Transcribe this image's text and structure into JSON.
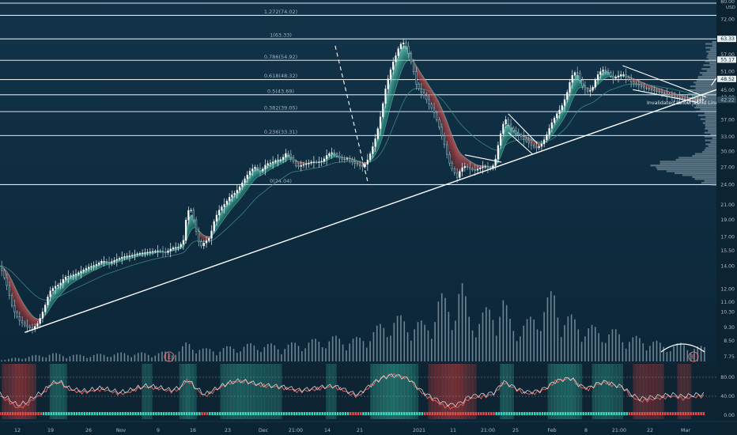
{
  "chart_data": {
    "type": "candlestick",
    "currency": "USD",
    "x_labels": [
      "12",
      "19",
      "26",
      "Nov",
      "9",
      "16",
      "23",
      "Dec",
      "21:00",
      "14",
      "21",
      "2021",
      "11",
      "21:00",
      "25",
      "Feb",
      "8",
      "21:00",
      "22",
      "Mar"
    ],
    "y_ticks": [
      "80.00",
      "72.00",
      "63.33",
      "57.00",
      "55.17",
      "51.00",
      "48.52",
      "45.00",
      "43.00",
      "42.22",
      "37.00",
      "33.00",
      "30.00",
      "27.00",
      "24.00",
      "21.00",
      "19.00",
      "17.00",
      "15.50",
      "14.00",
      "12.00",
      "11.00",
      "10.30",
      "9.30",
      "8.50",
      "7.75"
    ],
    "osc_ticks": [
      "80.00",
      "40.00",
      "0.00"
    ],
    "fib_levels": [
      {
        "label": "1.272(74.02)",
        "value": 74.02
      },
      {
        "label": "1(63.33)",
        "value": 63.33
      },
      {
        "label": "0.786(54.92)",
        "value": 54.92
      },
      {
        "label": "0.618(48.32)",
        "value": 48.32
      },
      {
        "label": "0.5(43.69)",
        "value": 43.69
      },
      {
        "label": "0.382(39.05)",
        "value": 39.05
      },
      {
        "label": "0.236(33.31)",
        "value": 33.31
      },
      {
        "label": "0(24.04)",
        "value": 24.04
      }
    ],
    "price_path": [
      [
        0,
        14.0
      ],
      [
        8,
        12.3
      ],
      [
        15,
        10.5
      ],
      [
        22,
        9.8
      ],
      [
        30,
        9.4
      ],
      [
        38,
        9.2
      ],
      [
        45,
        9.6
      ],
      [
        52,
        10.6
      ],
      [
        58,
        11.8
      ],
      [
        64,
        12.2
      ],
      [
        70,
        12.4
      ],
      [
        76,
        13.0
      ],
      [
        82,
        13.1
      ],
      [
        90,
        13.3
      ],
      [
        97,
        13.6
      ],
      [
        104,
        13.9
      ],
      [
        112,
        14.1
      ],
      [
        120,
        14.5
      ],
      [
        128,
        14.3
      ],
      [
        136,
        14.6
      ],
      [
        145,
        14.9
      ],
      [
        153,
        15.0
      ],
      [
        162,
        15.2
      ],
      [
        170,
        15.3
      ],
      [
        178,
        15.4
      ],
      [
        186,
        15.5
      ],
      [
        194,
        15.3
      ],
      [
        202,
        15.8
      ],
      [
        210,
        15.9
      ],
      [
        215,
        16.6
      ],
      [
        219,
        19.8
      ],
      [
        223,
        20.7
      ],
      [
        228,
        18.6
      ],
      [
        232,
        16.6
      ],
      [
        236,
        16.0
      ],
      [
        240,
        16.4
      ],
      [
        246,
        16.9
      ],
      [
        252,
        19.2
      ],
      [
        258,
        20.5
      ],
      [
        264,
        21.2
      ],
      [
        270,
        22.3
      ],
      [
        276,
        22.8
      ],
      [
        282,
        23.9
      ],
      [
        288,
        25.2
      ],
      [
        294,
        26.5
      ],
      [
        300,
        27.1
      ],
      [
        306,
        26.2
      ],
      [
        312,
        27.6
      ],
      [
        318,
        27.8
      ],
      [
        324,
        28.3
      ],
      [
        330,
        28.4
      ],
      [
        336,
        29.8
      ],
      [
        342,
        28.6
      ],
      [
        348,
        27.0
      ],
      [
        354,
        27.4
      ],
      [
        360,
        27.6
      ],
      [
        366,
        28.0
      ],
      [
        372,
        27.9
      ],
      [
        378,
        28.1
      ],
      [
        384,
        29.4
      ],
      [
        390,
        29.8
      ],
      [
        396,
        28.9
      ],
      [
        402,
        28.4
      ],
      [
        408,
        28.6
      ],
      [
        414,
        27.8
      ],
      [
        420,
        27.4
      ],
      [
        426,
        27.0
      ],
      [
        432,
        28.6
      ],
      [
        436,
        30.4
      ],
      [
        440,
        32.6
      ],
      [
        444,
        35.6
      ],
      [
        448,
        39.8
      ],
      [
        452,
        45.4
      ],
      [
        456,
        49.6
      ],
      [
        460,
        53.6
      ],
      [
        464,
        56.6
      ],
      [
        468,
        60.2
      ],
      [
        472,
        62.2
      ],
      [
        476,
        60.2
      ],
      [
        480,
        56.6
      ],
      [
        484,
        52.2
      ],
      [
        488,
        46.9
      ],
      [
        492,
        45.0
      ],
      [
        496,
        43.8
      ],
      [
        500,
        42.3
      ],
      [
        504,
        40.6
      ],
      [
        508,
        39.4
      ],
      [
        512,
        37.0
      ],
      [
        516,
        34.6
      ],
      [
        520,
        32.0
      ],
      [
        524,
        29.4
      ],
      [
        528,
        27.2
      ],
      [
        532,
        26.2
      ],
      [
        536,
        25.2
      ],
      [
        540,
        26.6
      ],
      [
        544,
        27.2
      ],
      [
        550,
        26.8
      ],
      [
        556,
        26.4
      ],
      [
        562,
        26.8
      ],
      [
        568,
        27.2
      ],
      [
        574,
        26.6
      ],
      [
        580,
        27.6
      ],
      [
        586,
        33.0
      ],
      [
        592,
        37.4
      ],
      [
        598,
        35.2
      ],
      [
        604,
        34.0
      ],
      [
        610,
        33.2
      ],
      [
        616,
        32.3
      ],
      [
        622,
        31.4
      ],
      [
        628,
        30.6
      ],
      [
        634,
        31.2
      ],
      [
        640,
        33.0
      ],
      [
        646,
        35.9
      ],
      [
        652,
        38.2
      ],
      [
        658,
        40.1
      ],
      [
        664,
        43.4
      ],
      [
        670,
        49.4
      ],
      [
        676,
        51.2
      ],
      [
        682,
        46.6
      ],
      [
        688,
        44.6
      ],
      [
        694,
        45.2
      ],
      [
        700,
        49.6
      ],
      [
        706,
        51.6
      ],
      [
        712,
        51.1
      ],
      [
        718,
        48.6
      ],
      [
        724,
        49.4
      ],
      [
        730,
        50.2
      ],
      [
        736,
        48.6
      ],
      [
        742,
        47.1
      ],
      [
        748,
        46.6
      ],
      [
        754,
        45.8
      ],
      [
        760,
        45.4
      ],
      [
        766,
        44.9
      ],
      [
        772,
        44.5
      ],
      [
        778,
        44.0
      ],
      [
        784,
        43.6
      ],
      [
        790,
        43.0
      ],
      [
        796,
        42.8
      ],
      [
        802,
        42.4
      ],
      [
        808,
        42.1
      ],
      [
        814,
        41.8
      ],
      [
        820,
        42.2
      ],
      [
        826,
        42.3
      ]
    ],
    "volume_path": [
      [
        0,
        2
      ],
      [
        30,
        6
      ],
      [
        60,
        10
      ],
      [
        90,
        8
      ],
      [
        120,
        9
      ],
      [
        150,
        11
      ],
      [
        180,
        10
      ],
      [
        210,
        14
      ],
      [
        220,
        24
      ],
      [
        240,
        15
      ],
      [
        270,
        18
      ],
      [
        300,
        22
      ],
      [
        330,
        20
      ],
      [
        360,
        25
      ],
      [
        390,
        30
      ],
      [
        420,
        28
      ],
      [
        440,
        40
      ],
      [
        460,
        55
      ],
      [
        480,
        52
      ],
      [
        500,
        45
      ],
      [
        515,
        80
      ],
      [
        520,
        78
      ],
      [
        530,
        68
      ],
      [
        540,
        100
      ],
      [
        550,
        60
      ],
      [
        560,
        55
      ],
      [
        580,
        70
      ],
      [
        590,
        78
      ],
      [
        600,
        45
      ],
      [
        620,
        50
      ],
      [
        640,
        75
      ],
      [
        650,
        85
      ],
      [
        660,
        60
      ],
      [
        680,
        48
      ],
      [
        700,
        40
      ],
      [
        720,
        38
      ],
      [
        740,
        30
      ],
      [
        760,
        28
      ],
      [
        780,
        20
      ],
      [
        800,
        22
      ],
      [
        820,
        18
      ]
    ],
    "osc_path": [
      [
        0,
        40
      ],
      [
        10,
        30
      ],
      [
        20,
        15
      ],
      [
        30,
        20
      ],
      [
        40,
        35
      ],
      [
        50,
        45
      ],
      [
        60,
        65
      ],
      [
        70,
        70
      ],
      [
        80,
        55
      ],
      [
        90,
        50
      ],
      [
        100,
        48
      ],
      [
        110,
        52
      ],
      [
        120,
        55
      ],
      [
        130,
        50
      ],
      [
        140,
        45
      ],
      [
        150,
        48
      ],
      [
        160,
        55
      ],
      [
        170,
        60
      ],
      [
        180,
        58
      ],
      [
        190,
        55
      ],
      [
        200,
        50
      ],
      [
        210,
        55
      ],
      [
        220,
        75
      ],
      [
        230,
        55
      ],
      [
        240,
        40
      ],
      [
        250,
        50
      ],
      [
        260,
        60
      ],
      [
        270,
        68
      ],
      [
        280,
        72
      ],
      [
        290,
        70
      ],
      [
        300,
        65
      ],
      [
        310,
        62
      ],
      [
        320,
        60
      ],
      [
        330,
        58
      ],
      [
        340,
        55
      ],
      [
        350,
        50
      ],
      [
        360,
        52
      ],
      [
        370,
        55
      ],
      [
        380,
        58
      ],
      [
        390,
        60
      ],
      [
        400,
        55
      ],
      [
        410,
        45
      ],
      [
        420,
        40
      ],
      [
        430,
        55
      ],
      [
        440,
        70
      ],
      [
        450,
        80
      ],
      [
        460,
        85
      ],
      [
        470,
        82
      ],
      [
        480,
        75
      ],
      [
        490,
        55
      ],
      [
        500,
        40
      ],
      [
        510,
        30
      ],
      [
        520,
        20
      ],
      [
        530,
        15
      ],
      [
        540,
        20
      ],
      [
        550,
        35
      ],
      [
        560,
        38
      ],
      [
        570,
        40
      ],
      [
        580,
        45
      ],
      [
        590,
        70
      ],
      [
        600,
        60
      ],
      [
        610,
        50
      ],
      [
        620,
        45
      ],
      [
        630,
        48
      ],
      [
        640,
        55
      ],
      [
        650,
        70
      ],
      [
        660,
        75
      ],
      [
        670,
        78
      ],
      [
        680,
        60
      ],
      [
        690,
        55
      ],
      [
        700,
        65
      ],
      [
        710,
        70
      ],
      [
        720,
        62
      ],
      [
        730,
        58
      ],
      [
        740,
        40
      ],
      [
        750,
        30
      ],
      [
        760,
        32
      ],
      [
        770,
        35
      ],
      [
        780,
        38
      ],
      [
        790,
        40
      ],
      [
        800,
        35
      ],
      [
        810,
        38
      ],
      [
        820,
        40
      ]
    ],
    "annotations": [
      "Invalidated Below Trend Line"
    ],
    "event_markers": [
      "E",
      "E"
    ],
    "colors": {
      "background": "#0d2a3c",
      "up": "#4fd1b2",
      "down": "#e04b4b",
      "fib_line": "#dfe6ea",
      "trend_line": "#ffffff"
    }
  }
}
